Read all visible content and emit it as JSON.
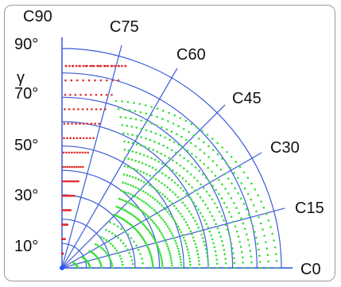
{
  "diagram": {
    "gamma_label": "γ",
    "gamma_ticks": [
      "90°",
      "70°",
      "50°",
      "30°",
      "10°"
    ],
    "c_plane_labels": [
      "C90",
      "C75",
      "C60",
      "C45",
      "C30",
      "C15",
      "C0"
    ],
    "colors": {
      "grid": "#3a5bd9",
      "series_a": "#e02c2c",
      "series_b": "#35e035",
      "text": "#111111",
      "frame": "#9a9a9a"
    },
    "grid": {
      "radial_spokes_deg": [
        0,
        15,
        30,
        45,
        60,
        75,
        90
      ],
      "rings": 9
    }
  }
}
